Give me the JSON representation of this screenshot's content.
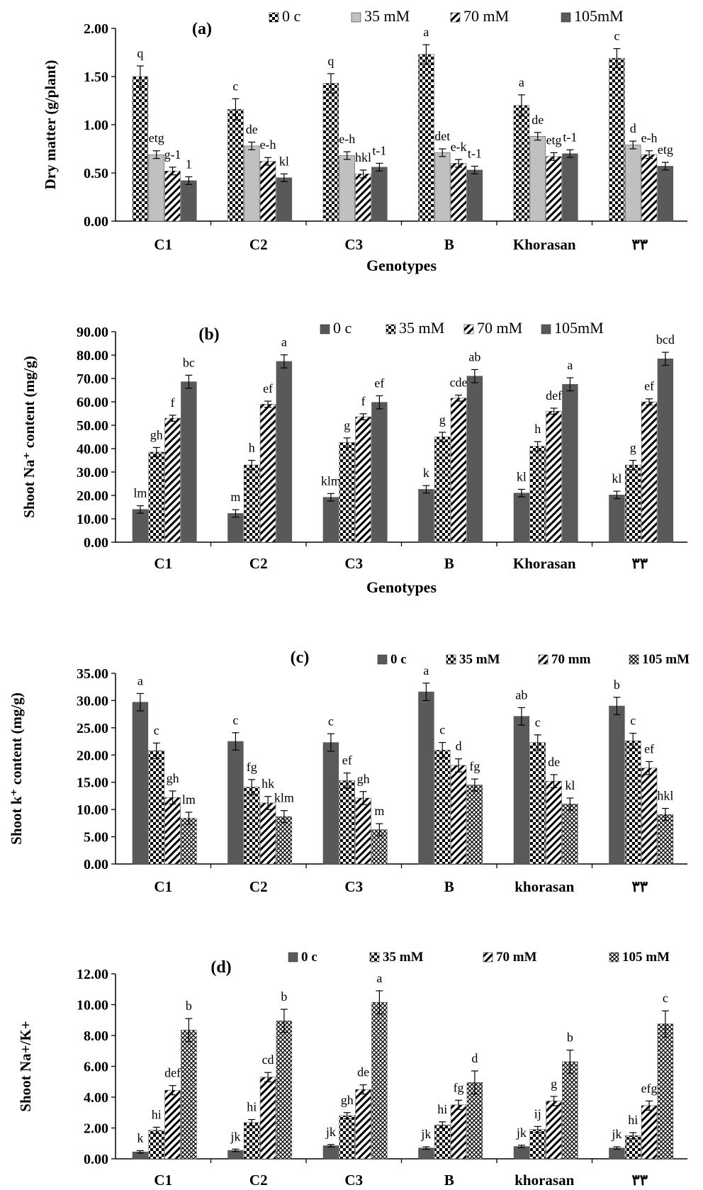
{
  "chart_data": [
    {
      "type": "bar",
      "title": "(a)",
      "xlabel": "Genotypes",
      "ylabel": "Dry matter (g/plant)",
      "ylim": [
        0,
        2
      ],
      "ytick_labels": [
        "0.00",
        "0.50",
        "1.00",
        "1.50",
        "2.00"
      ],
      "categories": [
        "C1",
        "C2",
        "C3",
        "B",
        "Khorasan",
        "۳۳"
      ],
      "legend_position": "top",
      "series": [
        {
          "name": "0  c",
          "pattern": "checker",
          "values": [
            1.5,
            1.16,
            1.43,
            1.73,
            1.2,
            1.69
          ],
          "errors": [
            0.11,
            0.11,
            0.1,
            0.1,
            0.11,
            0.1
          ],
          "labels": [
            "q",
            "c",
            "q",
            "a",
            "a",
            "c"
          ]
        },
        {
          "name": "35 mM",
          "pattern": "light-gray",
          "values": [
            0.69,
            0.78,
            0.68,
            0.71,
            0.88,
            0.79
          ],
          "errors": [
            0.04,
            0.04,
            0.04,
            0.04,
            0.04,
            0.04
          ],
          "labels": [
            "etg",
            "de",
            "e-h",
            "det",
            "de",
            "d"
          ]
        },
        {
          "name": "70 mM",
          "pattern": "diagonal",
          "values": [
            0.52,
            0.62,
            0.49,
            0.6,
            0.67,
            0.69
          ],
          "errors": [
            0.04,
            0.04,
            0.04,
            0.04,
            0.04,
            0.04
          ],
          "labels": [
            "g-1",
            "e-h",
            "hkl",
            "e-k",
            "etg",
            "e-h"
          ]
        },
        {
          "name": "105mM",
          "pattern": "dark-gray",
          "values": [
            0.42,
            0.45,
            0.56,
            0.53,
            0.7,
            0.57
          ],
          "errors": [
            0.04,
            0.04,
            0.04,
            0.04,
            0.04,
            0.04
          ],
          "labels": [
            "1",
            "kl",
            "t-1",
            "t-1",
            "t-1",
            "etg"
          ]
        }
      ]
    },
    {
      "type": "bar",
      "title": "(b)",
      "xlabel": "Genotypes",
      "ylabel": "Shoot Na⁺ content (mg/g)",
      "ylim": [
        0,
        90
      ],
      "ytick_labels": [
        "0.00",
        "10.00",
        "20.00",
        "30.00",
        "40.00",
        "50.00",
        "60.00",
        "70.00",
        "80.00",
        "90.00"
      ],
      "categories": [
        "C1",
        "C2",
        "C3",
        "B",
        "Khorasan",
        "۳۳"
      ],
      "legend_position": "top",
      "series": [
        {
          "name": "0  c",
          "pattern": "dark-gray",
          "values": [
            14.0,
            12.3,
            19.2,
            22.6,
            21.0,
            20.2
          ],
          "errors": [
            1.6,
            1.6,
            1.6,
            1.6,
            1.6,
            1.6
          ],
          "labels": [
            "lm",
            "m",
            "klm",
            "k",
            "kl",
            "kl"
          ]
        },
        {
          "name": "35 mM",
          "pattern": "checker",
          "values": [
            38.5,
            33.0,
            42.6,
            45.0,
            41.0,
            33.0
          ],
          "errors": [
            2,
            2,
            2,
            2,
            2,
            2
          ],
          "labels": [
            "gh",
            "h",
            "g",
            "g",
            "h",
            "g"
          ]
        },
        {
          "name": "70 mM",
          "pattern": "diagonal",
          "values": [
            53.0,
            59.0,
            53.6,
            61.6,
            56.0,
            60.0
          ],
          "errors": [
            1.3,
            1.3,
            1.3,
            1.3,
            1.3,
            1.3
          ],
          "labels": [
            "f",
            "ef",
            "f",
            "cde",
            "def",
            "ef"
          ]
        },
        {
          "name": "105mM",
          "pattern": "dark-gray",
          "values": [
            68.6,
            77.3,
            59.8,
            71.0,
            67.5,
            78.4
          ],
          "errors": [
            2.8,
            2.8,
            2.8,
            2.8,
            2.8,
            2.8
          ],
          "labels": [
            "bc",
            "a",
            "ef",
            "ab",
            "a",
            "bcd"
          ]
        }
      ]
    },
    {
      "type": "bar",
      "title": "(c)",
      "xlabel": "",
      "ylabel": "Shoot k⁺ content (mg/g)",
      "ylim": [
        0,
        35
      ],
      "ytick_labels": [
        "0.00",
        "5.00",
        "10.00",
        "15.00",
        "20.00",
        "25.00",
        "30.00",
        "35.00"
      ],
      "categories": [
        "C1",
        "C2",
        "C3",
        "B",
        "khorasan",
        "۳۳"
      ],
      "legend_position": "top-right",
      "series": [
        {
          "name": "0  c",
          "pattern": "dark-gray",
          "values": [
            29.7,
            22.5,
            22.3,
            31.6,
            27.1,
            29.0
          ],
          "errors": [
            1.6,
            1.6,
            1.6,
            1.6,
            1.6,
            1.6
          ],
          "labels": [
            "a",
            "c",
            "c",
            "a",
            "ab",
            "b"
          ]
        },
        {
          "name": "35 mM",
          "pattern": "checker",
          "values": [
            20.8,
            14.1,
            15.3,
            20.9,
            22.3,
            22.6
          ],
          "errors": [
            1.4,
            1.4,
            1.4,
            1.4,
            1.4,
            1.4
          ],
          "labels": [
            "c",
            "fg",
            "ef",
            "c",
            "c",
            "c"
          ]
        },
        {
          "name": "70 mm",
          "pattern": "diagonal",
          "values": [
            12.2,
            11.2,
            12.1,
            18.1,
            15.2,
            17.6
          ],
          "errors": [
            1.2,
            1.2,
            1.2,
            1.2,
            1.2,
            1.2
          ],
          "labels": [
            "gh",
            "hk",
            "gh",
            "d",
            "de",
            "ef"
          ]
        },
        {
          "name": "105 mM",
          "pattern": "crosshatch",
          "values": [
            8.4,
            8.7,
            6.3,
            14.5,
            11.0,
            9.1
          ],
          "errors": [
            1.1,
            1.1,
            1.1,
            1.1,
            1.1,
            1.1
          ],
          "labels": [
            "lm",
            "klm",
            "m",
            "fg",
            "kl",
            "hkl"
          ]
        }
      ]
    },
    {
      "type": "bar",
      "title": "(d)",
      "xlabel": "",
      "ylabel": "Shoot Na+/K+",
      "ylim": [
        0,
        12
      ],
      "ytick_labels": [
        "0.00",
        "2.00",
        "4.00",
        "6.00",
        "8.00",
        "10.00",
        "12.00"
      ],
      "categories": [
        "C1",
        "C2",
        "C3",
        "B",
        "khorasan",
        "۳۳"
      ],
      "legend_position": "top-right",
      "series": [
        {
          "name": "0  c",
          "pattern": "dark-gray",
          "values": [
            0.45,
            0.55,
            0.85,
            0.7,
            0.8,
            0.7
          ],
          "errors": [
            0.08,
            0.08,
            0.08,
            0.08,
            0.08,
            0.08
          ],
          "labels": [
            "k",
            "jk",
            "jk",
            "jk",
            "jk",
            "jk"
          ]
        },
        {
          "name": "35 mM",
          "pattern": "checker",
          "values": [
            1.85,
            2.35,
            2.8,
            2.2,
            1.9,
            1.5
          ],
          "errors": [
            0.2,
            0.2,
            0.2,
            0.2,
            0.2,
            0.2
          ],
          "labels": [
            "hi",
            "hi",
            "gh",
            "hi",
            "ij",
            "hi"
          ]
        },
        {
          "name": "70 mM",
          "pattern": "diagonal",
          "values": [
            4.45,
            5.3,
            4.5,
            3.5,
            3.75,
            3.45
          ],
          "errors": [
            0.3,
            0.3,
            0.3,
            0.3,
            0.3,
            0.3
          ],
          "labels": [
            "def",
            "cd",
            "de",
            "fg",
            "g",
            "efg"
          ]
        },
        {
          "name": "105 mM",
          "pattern": "crosshatch",
          "values": [
            8.35,
            8.95,
            10.15,
            4.95,
            6.3,
            8.75
          ],
          "errors": [
            0.75,
            0.75,
            0.75,
            0.75,
            0.75,
            0.85
          ],
          "labels": [
            "b",
            "b",
            "a",
            "d",
            "b",
            "c"
          ]
        }
      ]
    }
  ]
}
